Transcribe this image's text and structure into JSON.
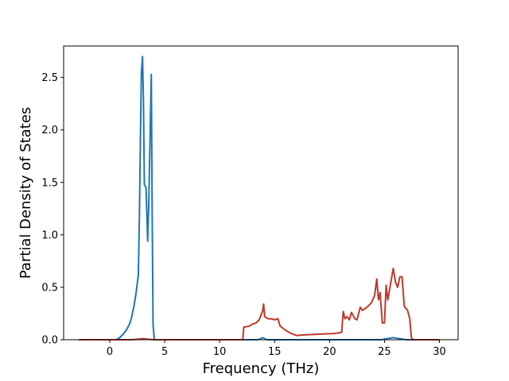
{
  "chart_data": {
    "type": "line",
    "xlabel": "Frequency (THz)",
    "ylabel": "Partial Density of States",
    "xlim": [
      -4.2,
      31.7
    ],
    "ylim": [
      0,
      2.8
    ],
    "xticks": [
      0,
      5,
      10,
      15,
      20,
      25,
      30
    ],
    "yticks": [
      0.0,
      0.5,
      1.0,
      1.5,
      2.0,
      2.5
    ],
    "xtick_labels": [
      "0",
      "5",
      "10",
      "15",
      "20",
      "25",
      "30"
    ],
    "ytick_labels": [
      "0.0",
      "0.5",
      "1.0",
      "1.5",
      "2.0",
      "2.5"
    ],
    "grid": false,
    "series": [
      {
        "color": "#1f77b4",
        "points": [
          [
            -2.8,
            0.0
          ],
          [
            0.6,
            0.0
          ],
          [
            0.9,
            0.02
          ],
          [
            1.2,
            0.05
          ],
          [
            1.5,
            0.09
          ],
          [
            1.8,
            0.15
          ],
          [
            2.0,
            0.22
          ],
          [
            2.2,
            0.32
          ],
          [
            2.4,
            0.45
          ],
          [
            2.6,
            0.62
          ],
          [
            2.7,
            1.2
          ],
          [
            2.8,
            2.0
          ],
          [
            2.88,
            2.55
          ],
          [
            2.98,
            2.7
          ],
          [
            3.06,
            2.3
          ],
          [
            3.15,
            1.48
          ],
          [
            3.3,
            1.45
          ],
          [
            3.45,
            0.94
          ],
          [
            3.55,
            1.3
          ],
          [
            3.68,
            2.0
          ],
          [
            3.78,
            2.53
          ],
          [
            3.86,
            1.2
          ],
          [
            3.94,
            0.15
          ],
          [
            4.05,
            0.0
          ],
          [
            13.5,
            0.0
          ],
          [
            13.9,
            0.02
          ],
          [
            14.3,
            0.0
          ],
          [
            24.7,
            0.0
          ],
          [
            25.2,
            0.01
          ],
          [
            25.8,
            0.02
          ],
          [
            26.4,
            0.01
          ],
          [
            27.0,
            0.0
          ],
          [
            30.0,
            0.0
          ]
        ]
      },
      {
        "color": "#c0392b",
        "points": [
          [
            -2.8,
            0.0
          ],
          [
            2.0,
            0.0
          ],
          [
            2.5,
            0.005
          ],
          [
            3.0,
            0.01
          ],
          [
            3.5,
            0.005
          ],
          [
            4.0,
            0.0
          ],
          [
            12.1,
            0.0
          ],
          [
            12.2,
            0.12
          ],
          [
            12.7,
            0.13
          ],
          [
            13.0,
            0.15
          ],
          [
            13.3,
            0.16
          ],
          [
            13.6,
            0.19
          ],
          [
            13.9,
            0.27
          ],
          [
            14.0,
            0.34
          ],
          [
            14.1,
            0.22
          ],
          [
            14.4,
            0.2
          ],
          [
            14.7,
            0.2
          ],
          [
            15.0,
            0.19
          ],
          [
            15.3,
            0.2
          ],
          [
            15.5,
            0.13
          ],
          [
            16.0,
            0.09
          ],
          [
            16.5,
            0.06
          ],
          [
            17.0,
            0.04
          ],
          [
            17.5,
            0.045
          ],
          [
            18.5,
            0.05
          ],
          [
            19.5,
            0.055
          ],
          [
            20.5,
            0.06
          ],
          [
            21.1,
            0.07
          ],
          [
            21.25,
            0.27
          ],
          [
            21.4,
            0.2
          ],
          [
            21.6,
            0.22
          ],
          [
            21.8,
            0.19
          ],
          [
            22.0,
            0.26
          ],
          [
            22.3,
            0.2
          ],
          [
            22.5,
            0.19
          ],
          [
            22.8,
            0.31
          ],
          [
            23.0,
            0.28
          ],
          [
            23.4,
            0.31
          ],
          [
            23.8,
            0.35
          ],
          [
            24.1,
            0.42
          ],
          [
            24.3,
            0.58
          ],
          [
            24.45,
            0.38
          ],
          [
            24.6,
            0.45
          ],
          [
            24.8,
            0.16
          ],
          [
            25.0,
            0.16
          ],
          [
            25.15,
            0.52
          ],
          [
            25.3,
            0.38
          ],
          [
            25.5,
            0.5
          ],
          [
            25.8,
            0.68
          ],
          [
            26.0,
            0.55
          ],
          [
            26.2,
            0.5
          ],
          [
            26.4,
            0.6
          ],
          [
            26.6,
            0.6
          ],
          [
            26.8,
            0.32
          ],
          [
            27.1,
            0.28
          ],
          [
            27.3,
            0.2
          ],
          [
            27.45,
            0.02
          ],
          [
            27.6,
            0.0
          ],
          [
            30.0,
            0.0
          ]
        ]
      }
    ]
  }
}
